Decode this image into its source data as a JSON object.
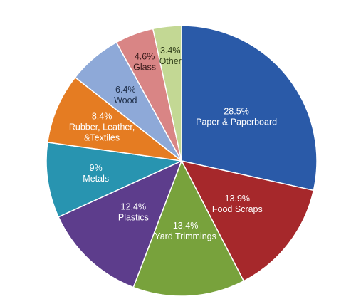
{
  "chart_data": {
    "type": "pie",
    "title": "",
    "start_angle_deg": 0,
    "direction": "clockwise",
    "slices": [
      {
        "label": "Paper & Paperboard",
        "value": 28.5,
        "value_label": "28.5%",
        "color": "#2a5aa8",
        "label_color": "#ffffff"
      },
      {
        "label": "Food Scraps",
        "value": 13.9,
        "value_label": "13.9%",
        "color": "#a6282b",
        "label_color": "#ffffff"
      },
      {
        "label": "Yard Trimmings",
        "value": 13.4,
        "value_label": "13.4%",
        "color": "#78a23c",
        "label_color": "#ffffff"
      },
      {
        "label": "Plastics",
        "value": 12.4,
        "value_label": "12.4%",
        "color": "#5d3d8c",
        "label_color": "#ffffff"
      },
      {
        "label": "Metals",
        "value": 9.0,
        "value_label": "9%",
        "color": "#2894b0",
        "label_color": "#ffffff"
      },
      {
        "label": "Rubber, Leather, &Textiles",
        "label_lines": [
          "Rubber, Leather,",
          "&Textiles"
        ],
        "value": 8.4,
        "value_label": "8.4%",
        "color": "#e57c22",
        "label_color": "#ffffff"
      },
      {
        "label": "Wood",
        "value": 6.4,
        "value_label": "6.4%",
        "color": "#8ea9d8",
        "label_color": "#1f2f4a"
      },
      {
        "label": "Glass",
        "value": 4.6,
        "value_label": "4.6%",
        "color": "#d98585",
        "label_color": "#3a1a1a"
      },
      {
        "label": "Other",
        "value": 3.4,
        "value_label": "3.4%",
        "color": "#c3d894",
        "label_color": "#2c3a16"
      }
    ]
  }
}
